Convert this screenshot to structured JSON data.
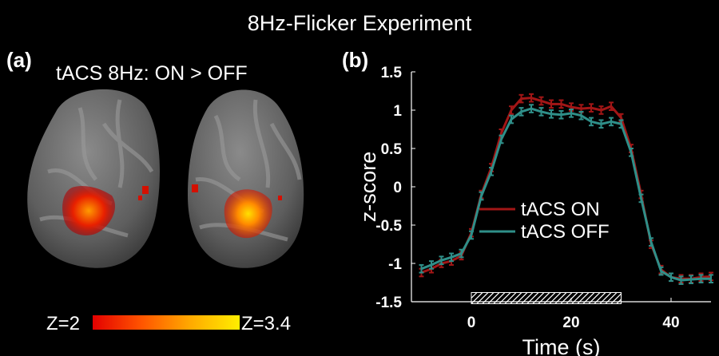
{
  "figure_title": "8Hz-Flicker Experiment",
  "panel_a": {
    "label": "(a)",
    "contrast_title": "tACS 8Hz: ON > OFF",
    "colorbar": {
      "min_label": "Z=2",
      "max_label": "Z=3.4"
    }
  },
  "panel_b": {
    "label": "(b)"
  },
  "colors": {
    "on": "#a21616",
    "off": "#2f8f89",
    "background": "#000000"
  },
  "chart_data": {
    "type": "line",
    "xlabel": "Time (s)",
    "ylabel": "z-score",
    "xlim": [
      -12,
      48
    ],
    "ylim": [
      -1.5,
      1.5
    ],
    "xticks": [
      0,
      20,
      40
    ],
    "yticks": [
      -1.5,
      -1,
      -0.5,
      0,
      0.5,
      1,
      1.5
    ],
    "ytick_labels": [
      "-1.5",
      "-1",
      "-0.5",
      "0",
      "0.5",
      "1",
      "1.5"
    ],
    "stimulus_block": [
      0,
      30
    ],
    "x": [
      -10,
      -8,
      -6,
      -4,
      -2,
      0,
      2,
      4,
      6,
      8,
      10,
      12,
      14,
      16,
      18,
      20,
      22,
      24,
      26,
      28,
      30,
      32,
      34,
      36,
      38,
      40,
      42,
      44,
      46,
      48
    ],
    "series": [
      {
        "name": "tACS ON",
        "values": [
          -1.12,
          -1.07,
          -1.0,
          -0.97,
          -0.9,
          -0.6,
          -0.1,
          0.25,
          0.7,
          1.0,
          1.15,
          1.16,
          1.12,
          1.08,
          1.08,
          1.04,
          1.02,
          1.03,
          1.0,
          1.05,
          0.9,
          0.5,
          -0.1,
          -0.75,
          -1.08,
          -1.18,
          -1.2,
          -1.2,
          -1.18,
          -1.17
        ],
        "err": 0.05
      },
      {
        "name": "tACS OFF",
        "values": [
          -1.07,
          -1.02,
          -0.96,
          -0.92,
          -0.87,
          -0.63,
          -0.12,
          0.2,
          0.62,
          0.88,
          0.98,
          1.02,
          0.98,
          0.95,
          0.94,
          0.96,
          0.93,
          0.85,
          0.82,
          0.85,
          0.82,
          0.45,
          -0.15,
          -0.72,
          -1.1,
          -1.18,
          -1.22,
          -1.21,
          -1.2,
          -1.2
        ],
        "err": 0.05
      }
    ],
    "legend_position": "center"
  }
}
